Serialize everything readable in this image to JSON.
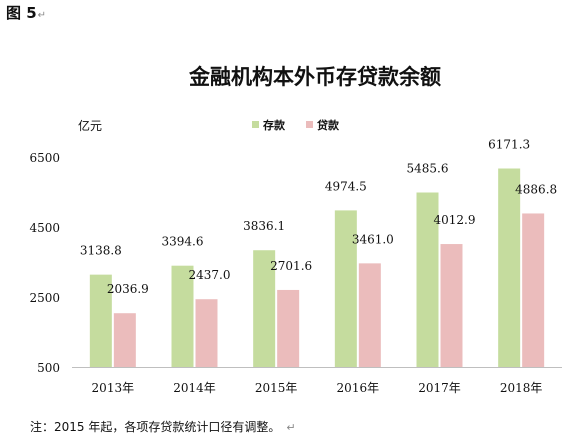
{
  "figure_label": "图 5",
  "paragraph_mark": "↵",
  "note": "注：2015 年起，各项存贷款统计口径有调整。",
  "chart_data": {
    "type": "bar",
    "title": "金融机构本外币存贷款余额",
    "ylabel": "亿元",
    "xlabel": "",
    "categories": [
      "2013年",
      "2014年",
      "2015年",
      "2016年",
      "2017年",
      "2018年"
    ],
    "series": [
      {
        "name": "存款",
        "color": "#c5dc9e",
        "values": [
          3138.8,
          3394.6,
          3836.1,
          4974.5,
          5485.6,
          6171.3
        ],
        "labels": [
          "3138.8",
          "3394.6",
          "3836.1",
          "4974.5",
          "5485.6",
          "6171.3"
        ]
      },
      {
        "name": "贷款",
        "color": "#ebbcbc",
        "values": [
          2036.9,
          2437.0,
          2701.6,
          3461.0,
          4012.9,
          4886.8
        ],
        "labels": [
          "2036.9",
          "2437.0",
          "2701.6",
          "3461.0",
          "4012.9",
          "4886.8"
        ]
      }
    ],
    "ylim": [
      500,
      6500
    ],
    "yticks": [
      500,
      2500,
      4500,
      6500
    ],
    "grid": false,
    "legend": "top-center"
  }
}
